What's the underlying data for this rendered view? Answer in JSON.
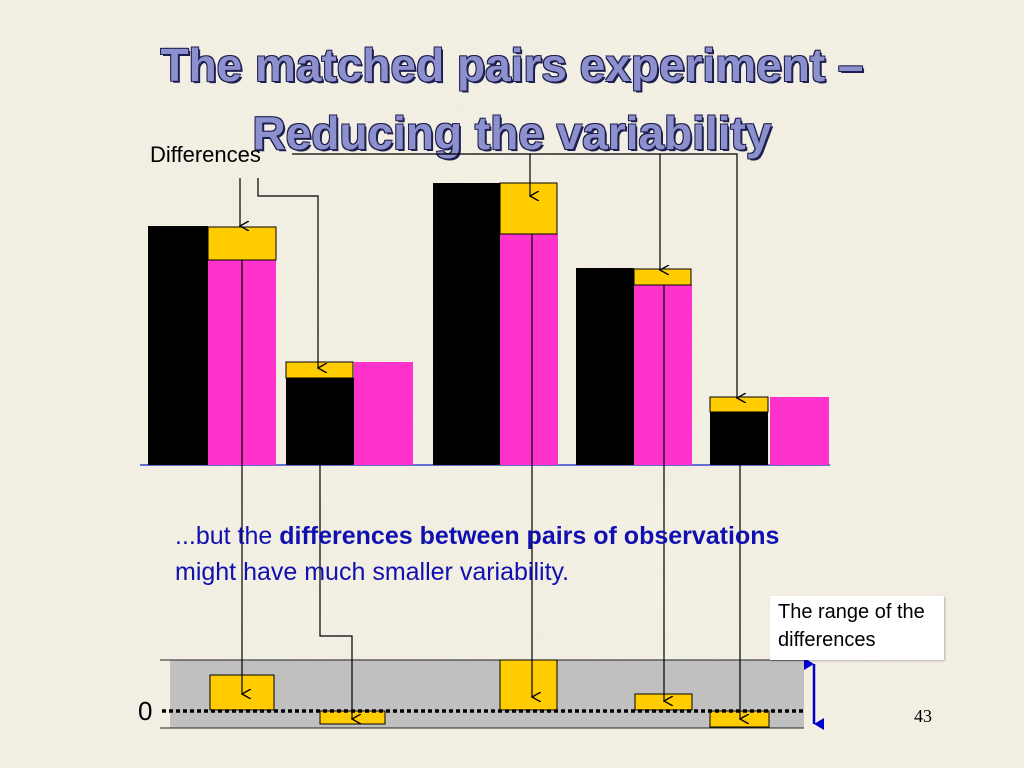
{
  "slide": {
    "title_line1": "The matched pairs experiment –",
    "title_line2": "Reducing the variability",
    "differences_label": "Differences",
    "caption_lead": "...but the ",
    "caption_bold": "differences between pairs of observations",
    "caption_tail": "might have much smaller variability.",
    "range_label_line1": "The range of the",
    "range_label_line2": "differences",
    "zero_label": "0",
    "page_number": "43"
  },
  "colors": {
    "first_obs": "#000000",
    "second_obs": "#ff33cc",
    "difference": "#ffcc00",
    "caption_text": "#1010b0",
    "range_band": "#c0c0c0",
    "range_arrow": "#0000cc"
  }
}
